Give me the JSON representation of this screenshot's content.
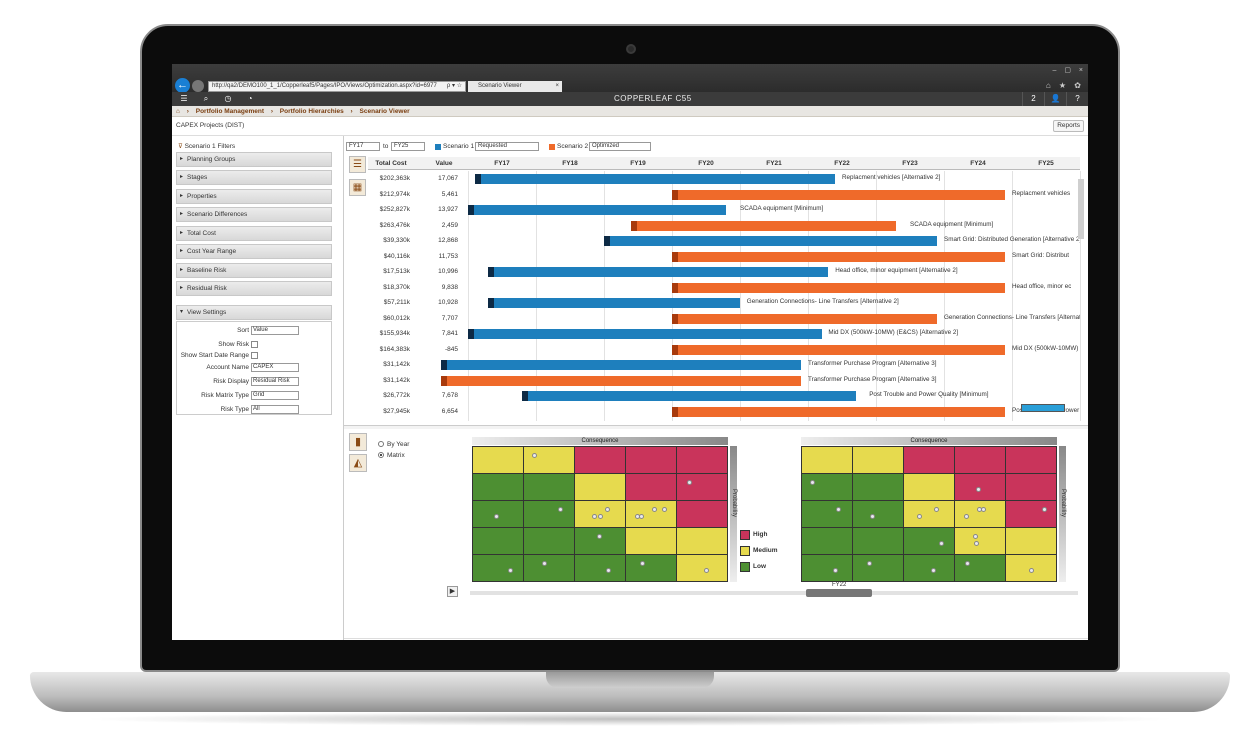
{
  "browser": {
    "url": "http://qa2/DEMO100_1_1/Copperleaf5/Pages/IPO/Views/Optimization.aspx?id=6977",
    "tab_title": "Scenario Viewer",
    "address_glyphs": "ρ ▾ ☆",
    "tab_close": "×",
    "back_glyph": "←",
    "window_buttons": "– ▢ ×",
    "tool_glyphs": "⌂ ★ ✿"
  },
  "app": {
    "brand": "COPPERLEAF C55",
    "notifications": "2",
    "toolbar_glyphs": [
      "☰",
      "⌕",
      "◷",
      "◔"
    ],
    "user_glyph": "👤",
    "help_glyph": "?"
  },
  "breadcrumb": [
    "Portfolio Management",
    "Portfolio Hierarchies",
    "Scenario Viewer"
  ],
  "breadcrumb_sep": "›",
  "page": {
    "title": "CAPEX Projects (DIST)",
    "reports_label": "Reports"
  },
  "filters": {
    "header": "Scenario 1 Filters",
    "items": [
      "Planning Groups",
      "Stages",
      "Properties",
      "Scenario Differences",
      "Total Cost",
      "Cost Year Range",
      "Baseline Risk",
      "Residual Risk"
    ],
    "view_settings_label": "View Settings",
    "view_settings": {
      "sort_label": "Sort",
      "sort_value": "Value",
      "show_risk_label": "Show Risk",
      "show_start_label": "Show Start Date Range",
      "account_label": "Account Name",
      "account_value": "CAPEX",
      "risk_display_label": "Risk Display",
      "risk_display_value": "Residual Risk",
      "matrix_type_label": "Risk Matrix Type",
      "matrix_type_value": "Grid",
      "risk_type_label": "Risk Type",
      "risk_type_value": "All"
    }
  },
  "gantt": {
    "from_year": "FY17",
    "to_label": "to",
    "to_year": "FY25",
    "scenario1_label": "Scenario 1",
    "scenario1_value": "Requested",
    "scenario2_label": "Scenario 2",
    "scenario2_value": "Optimized",
    "col_total_cost": "Total Cost",
    "col_value": "Value",
    "years": [
      "FY17",
      "FY18",
      "FY19",
      "FY20",
      "FY21",
      "FY22",
      "FY23",
      "FY24",
      "FY25"
    ],
    "rows": [
      {
        "cost": "$202,363k",
        "value": "17,067",
        "label": "Replacment vehicles [Alternative 2]",
        "scenario": "blue",
        "start": 0.1,
        "end": 5.4,
        "label_at": 5.5
      },
      {
        "cost": "$212,974k",
        "value": "5,461",
        "label": "Replacment vehicles",
        "scenario": "orange",
        "start": 3.0,
        "end": 7.9,
        "label_at": 8.0
      },
      {
        "cost": "$252,827k",
        "value": "13,927",
        "label": "SCADA equipment [Minimum]",
        "scenario": "blue",
        "start": 0.0,
        "end": 3.8,
        "label_at": 4.0
      },
      {
        "cost": "$263,476k",
        "value": "2,459",
        "label": "SCADA equipment [Minimum]",
        "scenario": "orange",
        "start": 2.4,
        "end": 6.3,
        "label_at": 6.5
      },
      {
        "cost": "$39,330k",
        "value": "12,868",
        "label": "Smart Grid: Distributed Generation [Alternative 2]",
        "scenario": "blue",
        "start": 2.0,
        "end": 6.9,
        "label_at": 7.0
      },
      {
        "cost": "$40,116k",
        "value": "11,753",
        "label": "Smart Grid: Distribut",
        "scenario": "orange",
        "start": 3.0,
        "end": 7.9,
        "label_at": 8.0
      },
      {
        "cost": "$17,513k",
        "value": "10,996",
        "label": "Head office, minor equipment [Alternative 2]",
        "scenario": "blue",
        "start": 0.3,
        "end": 5.3,
        "label_at": 5.4
      },
      {
        "cost": "$18,370k",
        "value": "9,838",
        "label": "Head office, minor ec",
        "scenario": "orange",
        "start": 3.0,
        "end": 7.9,
        "label_at": 8.0
      },
      {
        "cost": "$57,211k",
        "value": "10,928",
        "label": "Generation Connections- Line Transfers [Alternative 2]",
        "scenario": "blue",
        "start": 0.3,
        "end": 4.0,
        "label_at": 4.1
      },
      {
        "cost": "$60,012k",
        "value": "7,707",
        "label": "Generation Connections- Line Transfers [Alternative 2]",
        "scenario": "orange",
        "start": 3.0,
        "end": 6.9,
        "label_at": 7.0
      },
      {
        "cost": "$155,934k",
        "value": "7,841",
        "label": "Mid DX (500kW-10MW) (E&CS) [Alternative 2]",
        "scenario": "blue",
        "start": 0.0,
        "end": 5.2,
        "label_at": 5.3
      },
      {
        "cost": "$164,383k",
        "value": "-845",
        "label": "Mid DX (500kW-10MW)",
        "scenario": "orange",
        "start": 3.0,
        "end": 7.9,
        "label_at": 8.0
      },
      {
        "cost": "$31,142k",
        "value": "7,814",
        "label": "Transformer Purchase Program [Alternative 3]",
        "scenario": "blue",
        "start": -0.4,
        "end": 4.9,
        "label_at": 5.0
      },
      {
        "cost": "$31,142k",
        "value": "7,814",
        "label": "Transformer Purchase Program [Alternative 3]",
        "scenario": "orange",
        "start": -0.4,
        "end": 4.9,
        "label_at": 5.0
      },
      {
        "cost": "$26,772k",
        "value": "7,678",
        "label": "Post Trouble and Power Quality [Minimum]",
        "scenario": "blue",
        "start": 0.8,
        "end": 5.7,
        "label_at": 5.9
      },
      {
        "cost": "$27,945k",
        "value": "6,654",
        "label": "Post Trouble and Power Quality",
        "scenario": "orange",
        "start": 3.0,
        "end": 7.9,
        "label_at": 8.0
      }
    ]
  },
  "risk": {
    "by_year_label": "By Year",
    "matrix_label": "Matrix",
    "consequence_label": "Consequence",
    "probability_label": "Probability",
    "year_label": "FY22",
    "play_glyph": "▶",
    "legend": [
      {
        "label": "High",
        "color": "#c9345b"
      },
      {
        "label": "Medium",
        "color": "#e6da4e"
      },
      {
        "label": "Low",
        "color": "#4d8f32"
      }
    ],
    "colors": {
      "high": "#c9345b",
      "medium": "#e6da4e",
      "low": "#4d8f32",
      "blue": "#1e7fbd",
      "orange": "#ef6a2a"
    }
  }
}
